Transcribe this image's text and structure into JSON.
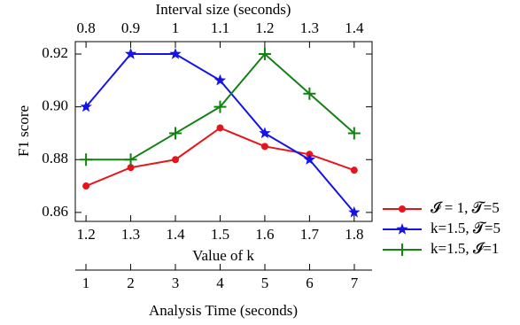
{
  "chart_data": {
    "type": "line",
    "ylabel": "F1 score",
    "xlabel": "Value of k",
    "xlabel_color": "#e8141c",
    "x": [
      1.2,
      1.3,
      1.4,
      1.5,
      1.6,
      1.7,
      1.8
    ],
    "xlim": [
      1.176,
      1.84
    ],
    "xticks": [
      1.2,
      1.3,
      1.4,
      1.5,
      1.6,
      1.7,
      1.8
    ],
    "x2label": "Interval size (seconds)",
    "x2label_color": "#1414e6",
    "x2lim": [
      0.776,
      1.44
    ],
    "x2ticks": [
      0.8,
      0.9,
      1,
      1.1,
      1.2,
      1.3,
      1.4
    ],
    "x3label": "Analysis Time (seconds)",
    "x3label_color": "#128212",
    "x3lim": [
      0.762,
      7.396
    ],
    "x3ticks": [
      1,
      2,
      3,
      4,
      5,
      6,
      7
    ],
    "ylim": [
      0.8566,
      0.9247
    ],
    "yticks": [
      {
        "value": 0.86,
        "label": "0.86"
      },
      {
        "value": 0.88,
        "label": "0.88"
      },
      {
        "value": 0.9,
        "label": "0.90"
      },
      {
        "value": 0.92,
        "label": "0.92"
      }
    ],
    "series": [
      {
        "name": "𝓘 = 1, 𝓣=5",
        "color": "#e8141c",
        "marker": "circle",
        "values": [
          0.87,
          0.877,
          0.88,
          0.892,
          0.885,
          0.882,
          0.876
        ]
      },
      {
        "name": "k=1.5, 𝓣=5",
        "color": "#1414e6",
        "marker": "star",
        "values": [
          0.9,
          0.92,
          0.92,
          0.91,
          0.89,
          0.88,
          0.86
        ]
      },
      {
        "name": "k=1.5, 𝓘=1",
        "color": "#128212",
        "marker": "plus",
        "values": [
          0.88,
          0.88,
          0.89,
          0.9,
          0.92,
          0.905,
          0.89
        ]
      }
    ]
  }
}
